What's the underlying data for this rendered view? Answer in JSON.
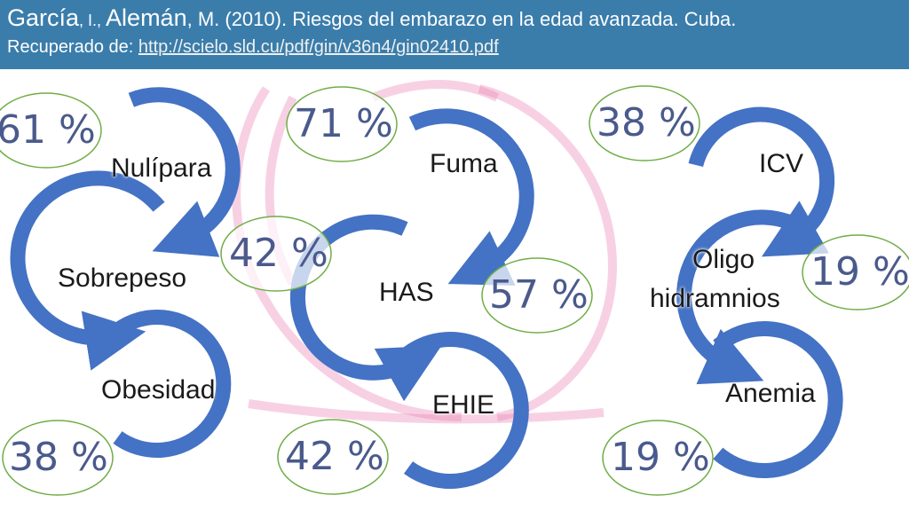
{
  "citation": {
    "author1": "García",
    "initial1": ", I., ",
    "author2": "Alemán",
    "rest": ", M. (2010). Riesgos del embarazo en la edad avanzada. Cuba.",
    "retrieved_prefix": "Recuperado de: ",
    "url": "http://scielo.sld.cu/pdf/gin/v36n4/gin02410.pdf"
  },
  "groups": [
    {
      "nodes": [
        {
          "label": "Nulípara"
        },
        {
          "label": "Sobrepeso"
        },
        {
          "label": "Obesidad"
        }
      ],
      "percents": [
        "61 %",
        "42 %",
        "38 %"
      ]
    },
    {
      "nodes": [
        {
          "label": "Fuma"
        },
        {
          "label": "HAS"
        },
        {
          "label": "EHIE"
        }
      ],
      "percents": [
        "71 %",
        "57 %",
        "42 %"
      ]
    },
    {
      "nodes": [
        {
          "label": "ICV"
        },
        {
          "label": "Oligo"
        },
        {
          "label": "hidramnios"
        },
        {
          "label": "Anemia"
        }
      ],
      "percents": [
        "38 %",
        "19 %",
        "19 %"
      ]
    }
  ],
  "colors": {
    "header_bg": "#3a7dab",
    "arrow": "#4472c4",
    "pct_ring": "#70ad47",
    "pct_text": "#4a5a8c",
    "background_sketch": "#e87ab0"
  }
}
